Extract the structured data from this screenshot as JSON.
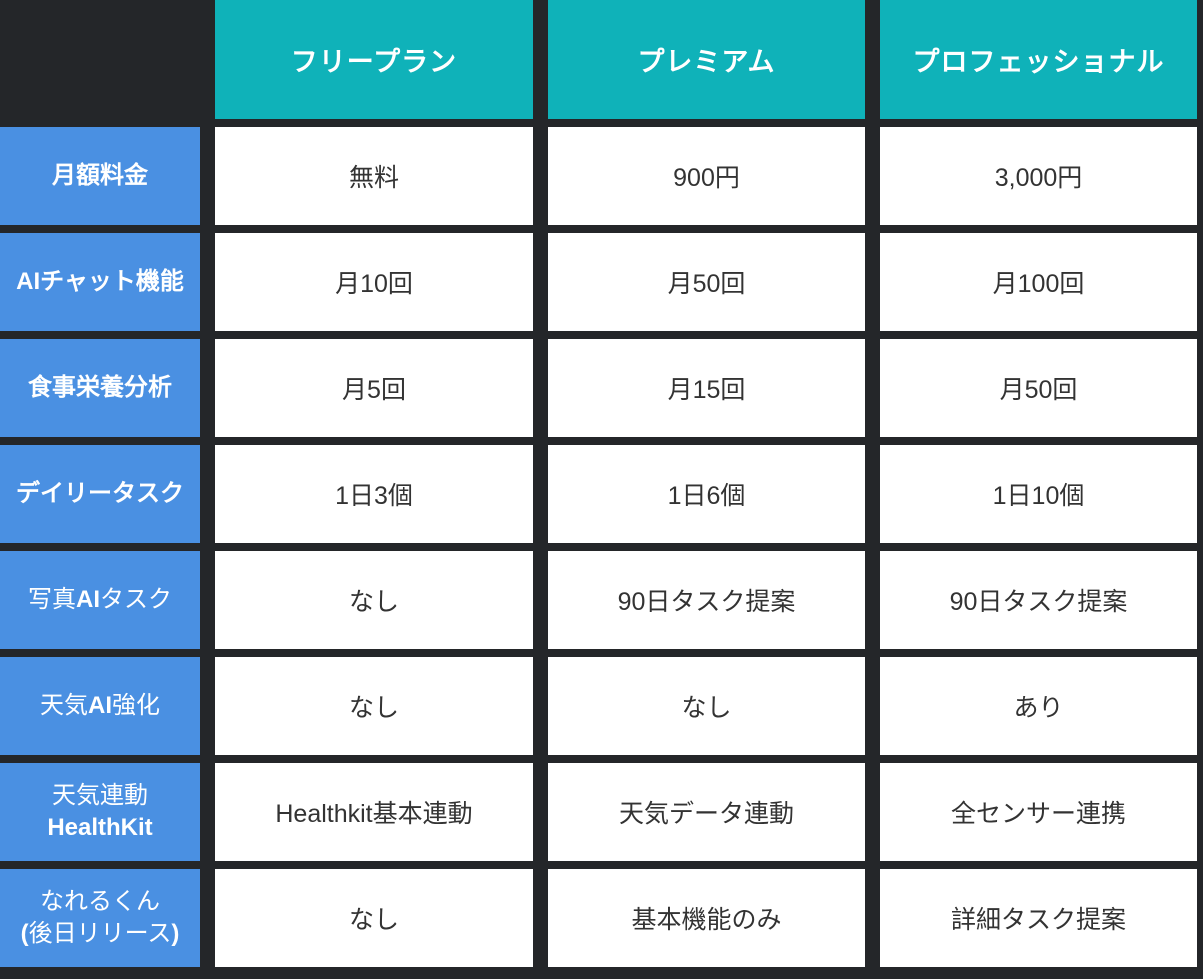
{
  "colors": {
    "background": "#242629",
    "plan_header_bg": "#0fb2b9",
    "feature_label_bg": "#4a90e2",
    "value_cell_bg": "#ffffff",
    "header_text": "#ffffff",
    "value_text": "#333333"
  },
  "chart_data": {
    "type": "table",
    "title": "",
    "columns": [
      "フリープラン",
      "プレミアム",
      "プロフェッショナル"
    ],
    "row_headers": [
      "月額料金",
      "AIチャット機能",
      "食事栄養分析",
      "デイリータスク",
      "写真AIタスク",
      "天気AI強化",
      "天気連動 HealthKit",
      "なれるくん (後日リリース)"
    ],
    "rows": [
      [
        "無料",
        "900円",
        "3,000円"
      ],
      [
        "月10回",
        "月50回",
        "月100回"
      ],
      [
        "月5回",
        "月15回",
        "月50回"
      ],
      [
        "1日3個",
        "1日6個",
        "1日10個"
      ],
      [
        "なし",
        "90日タスク提案",
        "90日タスク提案"
      ],
      [
        "なし",
        "なし",
        "あり"
      ],
      [
        "Healthkit基本連動",
        "天気データ連動",
        "全センサー連携"
      ],
      [
        "なし",
        "基本機能のみ",
        "詳細タスク提案"
      ]
    ]
  },
  "format": {
    "feature_segments": [
      [
        {
          "t": "月額料金",
          "b": true
        }
      ],
      [
        {
          "t": "AIチャット機能",
          "b": true
        }
      ],
      [
        {
          "t": "食事栄養分析",
          "b": true
        }
      ],
      [
        {
          "t": "デイリータスク",
          "b": true
        }
      ],
      [
        {
          "t": "写真",
          "b": false
        },
        {
          "t": "AI",
          "b": true
        },
        {
          "t": "タスク",
          "b": false
        }
      ],
      [
        {
          "t": "天気",
          "b": false
        },
        {
          "t": "AI",
          "b": true
        },
        {
          "t": "強化",
          "b": false
        }
      ],
      [
        {
          "t": "天気連動",
          "b": false
        },
        {
          "br": true
        },
        {
          "t": "HealthKit",
          "b": true
        }
      ],
      [
        {
          "t": "なれるくん",
          "b": false
        },
        {
          "br": true
        },
        {
          "t": "(",
          "b": true
        },
        {
          "t": "後日リリース",
          "b": false
        },
        {
          "t": ")",
          "b": true
        }
      ]
    ]
  }
}
